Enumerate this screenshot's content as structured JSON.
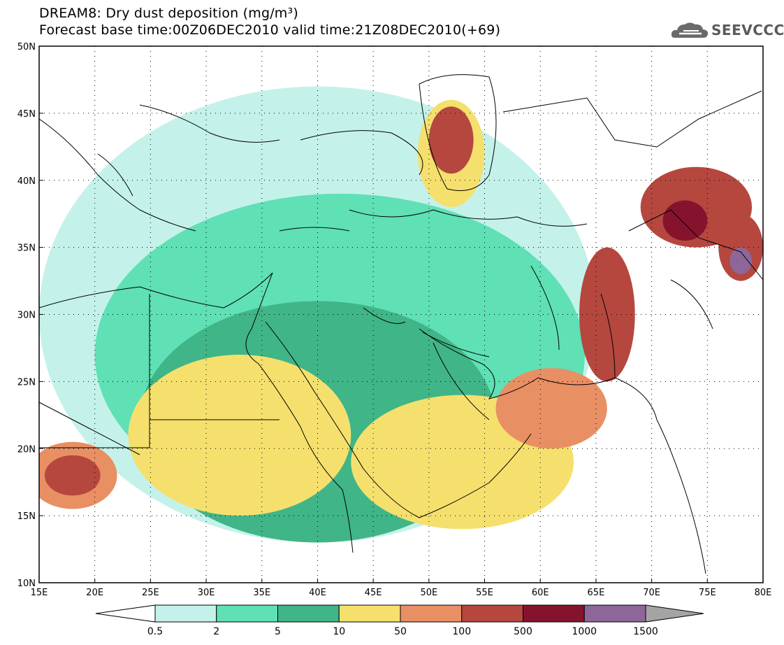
{
  "title": {
    "line1": "DREAM8: Dry dust deposition (mg/m³)",
    "line2": "Forecast base time:00Z06DEC2010 valid time:21Z08DEC2010(+69)"
  },
  "logo": {
    "text": "SEEVCCC",
    "icon": "cloud-logo-icon"
  },
  "map": {
    "lon_labels": [
      "15E",
      "20E",
      "25E",
      "30E",
      "35E",
      "40E",
      "45E",
      "50E",
      "55E",
      "60E",
      "65E",
      "70E",
      "75E",
      "80E"
    ],
    "lat_labels": [
      "50N",
      "45N",
      "40N",
      "35N",
      "30N",
      "25N",
      "20N",
      "15N",
      "10N"
    ],
    "lon_range": [
      15,
      80
    ],
    "lat_range": [
      10,
      50
    ],
    "gridlines": "dotted"
  },
  "legend": {
    "colors": [
      "#ffffff",
      "#c4f2ea",
      "#5fe0b5",
      "#40b587",
      "#f5e06e",
      "#e98f64",
      "#b5473f",
      "#86132d",
      "#8e6699",
      "#a4a4a4"
    ],
    "labels": [
      "0.5",
      "2",
      "5",
      "10",
      "50",
      "100",
      "500",
      "1000",
      "1500"
    ]
  },
  "dust_areas": [
    {
      "level": 1,
      "lon": 40,
      "lat": 30,
      "rx": 25,
      "ry": 17
    },
    {
      "level": 2,
      "lon": 42,
      "lat": 27,
      "rx": 22,
      "ry": 12
    },
    {
      "level": 3,
      "lon": 40,
      "lat": 22,
      "rx": 16,
      "ry": 9
    },
    {
      "level": 4,
      "lon": 33,
      "lat": 21,
      "rx": 10,
      "ry": 6
    },
    {
      "level": 4,
      "lon": 53,
      "lat": 19,
      "rx": 10,
      "ry": 5
    },
    {
      "level": 4,
      "lon": 52,
      "lat": 42,
      "rx": 3,
      "ry": 4
    },
    {
      "level": 5,
      "lon": 61,
      "lat": 23,
      "rx": 5,
      "ry": 3
    },
    {
      "level": 6,
      "lon": 52,
      "lat": 43,
      "rx": 2,
      "ry": 2.5
    },
    {
      "level": 6,
      "lon": 66,
      "lat": 30,
      "rx": 2.5,
      "ry": 5
    },
    {
      "level": 6,
      "lon": 74,
      "lat": 38,
      "rx": 5,
      "ry": 3
    },
    {
      "level": 6,
      "lon": 78,
      "lat": 35,
      "rx": 2,
      "ry": 2.5
    },
    {
      "level": 5,
      "lon": 18,
      "lat": 18,
      "rx": 4,
      "ry": 2.5
    },
    {
      "level": 6,
      "lon": 18,
      "lat": 18,
      "rx": 2.5,
      "ry": 1.5
    },
    {
      "level": 7,
      "lon": 73,
      "lat": 37,
      "rx": 2,
      "ry": 1.5
    },
    {
      "level": 8,
      "lon": 78,
      "lat": 34,
      "rx": 1,
      "ry": 1
    }
  ]
}
